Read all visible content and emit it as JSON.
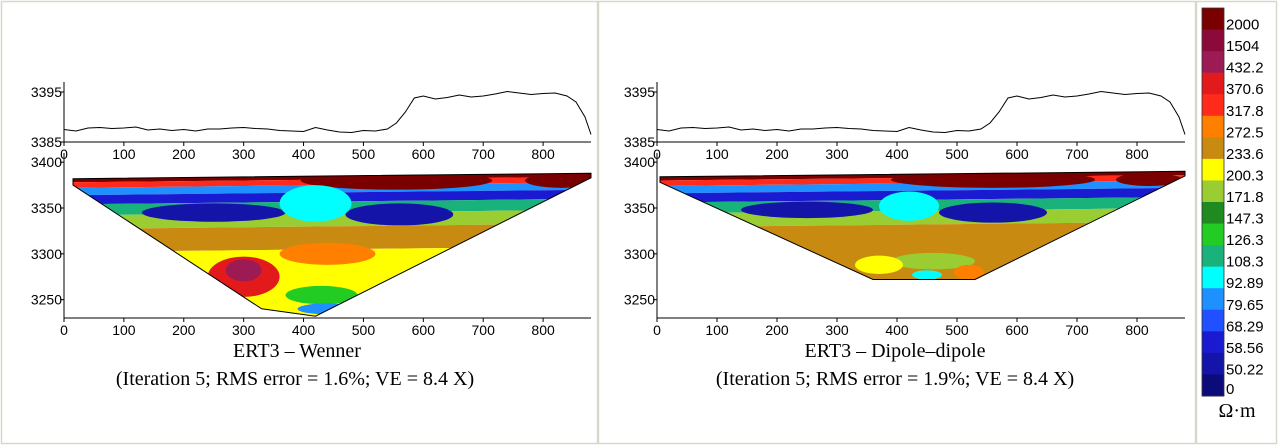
{
  "chart_data": [
    {
      "type": "line",
      "panel": "left-topography",
      "title": "",
      "xticks": [
        0,
        100,
        200,
        300,
        400,
        500,
        600,
        700,
        800
      ],
      "yticks": [
        3385,
        3395
      ],
      "xlim": [
        0,
        880
      ],
      "ylim": [
        3385,
        3397
      ],
      "grid": false,
      "x": [
        0,
        20,
        40,
        60,
        80,
        100,
        120,
        140,
        160,
        180,
        200,
        220,
        240,
        260,
        280,
        300,
        320,
        340,
        360,
        380,
        400,
        420,
        440,
        460,
        480,
        500,
        520,
        540,
        555,
        570,
        585,
        600,
        620,
        640,
        660,
        680,
        700,
        720,
        740,
        760,
        780,
        800,
        820,
        840,
        855,
        870,
        880
      ],
      "y": [
        3387.5,
        3387.2,
        3387.8,
        3387.9,
        3387.7,
        3387.8,
        3388.0,
        3387.4,
        3387.6,
        3387.3,
        3387.5,
        3387.2,
        3387.6,
        3387.6,
        3387.8,
        3387.9,
        3387.7,
        3387.6,
        3387.3,
        3387.2,
        3387.1,
        3387.9,
        3387.4,
        3387.0,
        3386.9,
        3387.3,
        3387.2,
        3387.6,
        3388.8,
        3391.0,
        3393.8,
        3394.2,
        3393.6,
        3393.9,
        3394.4,
        3394.0,
        3394.2,
        3394.6,
        3395.1,
        3394.8,
        3394.5,
        3394.7,
        3394.8,
        3394.2,
        3393.0,
        3390.0,
        3386.5
      ]
    },
    {
      "type": "heatmap",
      "panel": "left-section",
      "xticks": [
        0,
        100,
        200,
        300,
        400,
        500,
        600,
        700,
        800
      ],
      "yticks": [
        3250,
        3300,
        3350,
        3400
      ],
      "xlim": [
        0,
        880
      ],
      "ylim": [
        3230,
        3410
      ],
      "caption": "ERT3 – Wenner",
      "subcaption": "(Iteration 5; RMS error = 1.6%; VE = 8.4 X)",
      "outline": [
        [
          15,
          3382
        ],
        [
          880,
          3388
        ],
        [
          880,
          3383
        ],
        [
          420,
          3232
        ],
        [
          330,
          3240
        ],
        [
          15,
          3375
        ]
      ],
      "layers": [
        {
          "depth_top": 0,
          "depth_bottom": 4,
          "value": 2000
        },
        {
          "depth_top": 4,
          "depth_bottom": 10,
          "value": 317.8
        },
        {
          "depth_top": 10,
          "depth_bottom": 18,
          "value": 79.65
        },
        {
          "depth_top": 18,
          "depth_bottom": 28,
          "value": 58.56
        },
        {
          "depth_top": 28,
          "depth_bottom": 40,
          "value": 108.3
        },
        {
          "depth_top": 40,
          "depth_bottom": 55,
          "value": 171.8
        },
        {
          "depth_top": 55,
          "depth_bottom": 80,
          "value": 233.6
        },
        {
          "depth_top": 80,
          "depth_bottom": 200,
          "value": 200.3
        }
      ],
      "blobs": [
        {
          "cx": 555,
          "cy": 3380,
          "rx": 160,
          "ry": 10,
          "value": 2000
        },
        {
          "cx": 830,
          "cy": 3380,
          "rx": 60,
          "ry": 8,
          "value": 2000
        },
        {
          "cx": 560,
          "cy": 3343,
          "rx": 90,
          "ry": 12,
          "value": 50.22
        },
        {
          "cx": 250,
          "cy": 3345,
          "rx": 120,
          "ry": 10,
          "value": 50.22
        },
        {
          "cx": 420,
          "cy": 3355,
          "rx": 60,
          "ry": 20,
          "value": 92.89
        },
        {
          "cx": 440,
          "cy": 3300,
          "rx": 80,
          "ry": 12,
          "value": 272.5
        },
        {
          "cx": 300,
          "cy": 3275,
          "rx": 60,
          "ry": 22,
          "value": 370.6
        },
        {
          "cx": 300,
          "cy": 3282,
          "rx": 30,
          "ry": 12,
          "value": 432.2
        },
        {
          "cx": 430,
          "cy": 3255,
          "rx": 60,
          "ry": 10,
          "value": 126.3
        },
        {
          "cx": 440,
          "cy": 3240,
          "rx": 50,
          "ry": 6,
          "value": 79.65
        }
      ]
    },
    {
      "type": "line",
      "panel": "right-topography",
      "xticks": [
        0,
        100,
        200,
        300,
        400,
        500,
        600,
        700,
        800
      ],
      "yticks": [
        3385,
        3395
      ],
      "xlim": [
        0,
        880
      ],
      "ylim": [
        3385,
        3397
      ],
      "grid": false,
      "x": [
        0,
        20,
        40,
        60,
        80,
        100,
        120,
        140,
        160,
        180,
        200,
        220,
        240,
        260,
        280,
        300,
        320,
        340,
        360,
        380,
        400,
        420,
        440,
        460,
        480,
        500,
        520,
        540,
        555,
        570,
        585,
        600,
        620,
        640,
        660,
        680,
        700,
        720,
        740,
        760,
        780,
        800,
        820,
        840,
        855,
        870,
        880
      ],
      "y": [
        3387.5,
        3387.2,
        3387.8,
        3387.9,
        3387.7,
        3387.8,
        3388.0,
        3387.4,
        3387.6,
        3387.3,
        3387.5,
        3387.2,
        3387.6,
        3387.6,
        3387.8,
        3387.9,
        3387.7,
        3387.6,
        3387.3,
        3387.2,
        3387.1,
        3387.9,
        3387.4,
        3387.0,
        3386.9,
        3387.3,
        3387.2,
        3387.6,
        3388.8,
        3391.0,
        3393.8,
        3394.2,
        3393.6,
        3393.9,
        3394.4,
        3394.0,
        3394.2,
        3394.6,
        3395.1,
        3394.8,
        3394.5,
        3394.7,
        3394.8,
        3394.2,
        3393.0,
        3390.0,
        3386.5
      ]
    },
    {
      "type": "heatmap",
      "panel": "right-section",
      "xticks": [
        0,
        100,
        200,
        300,
        400,
        500,
        600,
        700,
        800
      ],
      "yticks": [
        3250,
        3300,
        3350,
        3400
      ],
      "xlim": [
        0,
        880
      ],
      "ylim": [
        3230,
        3410
      ],
      "caption": "ERT3 – Dipole–dipole",
      "subcaption": "(Iteration 5; RMS error = 1.9%; VE = 8.4 X)",
      "outline": [
        [
          5,
          3384
        ],
        [
          880,
          3390
        ],
        [
          880,
          3385
        ],
        [
          530,
          3272
        ],
        [
          360,
          3272
        ],
        [
          5,
          3378
        ]
      ],
      "layers": [
        {
          "depth_top": 0,
          "depth_bottom": 4,
          "value": 2000
        },
        {
          "depth_top": 4,
          "depth_bottom": 10,
          "value": 317.8
        },
        {
          "depth_top": 10,
          "depth_bottom": 18,
          "value": 79.65
        },
        {
          "depth_top": 18,
          "depth_bottom": 28,
          "value": 58.56
        },
        {
          "depth_top": 28,
          "depth_bottom": 40,
          "value": 108.3
        },
        {
          "depth_top": 40,
          "depth_bottom": 55,
          "value": 171.8
        },
        {
          "depth_top": 55,
          "depth_bottom": 200,
          "value": 233.6
        }
      ],
      "blobs": [
        {
          "cx": 560,
          "cy": 3381,
          "rx": 170,
          "ry": 9,
          "value": 2000
        },
        {
          "cx": 820,
          "cy": 3381,
          "rx": 55,
          "ry": 7,
          "value": 2000
        },
        {
          "cx": 560,
          "cy": 3345,
          "rx": 90,
          "ry": 11,
          "value": 50.22
        },
        {
          "cx": 250,
          "cy": 3348,
          "rx": 110,
          "ry": 9,
          "value": 50.22
        },
        {
          "cx": 420,
          "cy": 3352,
          "rx": 50,
          "ry": 16,
          "value": 92.89
        },
        {
          "cx": 460,
          "cy": 3292,
          "rx": 70,
          "ry": 9,
          "value": 171.8
        },
        {
          "cx": 370,
          "cy": 3288,
          "rx": 40,
          "ry": 10,
          "value": 200.3
        },
        {
          "cx": 450,
          "cy": 3277,
          "rx": 25,
          "ry": 5,
          "value": 92.89
        },
        {
          "cx": 520,
          "cy": 3280,
          "rx": 25,
          "ry": 8,
          "value": 272.5
        }
      ]
    }
  ],
  "legend": {
    "unit": "Ω·m",
    "labels": [
      "2000",
      "1504",
      "432.2",
      "370.6",
      "317.8",
      "272.5",
      "233.6",
      "200.3",
      "171.8",
      "147.3",
      "126.3",
      "108.3",
      "92.89",
      "79.65",
      "68.29",
      "58.56",
      "50.22",
      "0"
    ],
    "colors": [
      "#7a0000",
      "#8b0a3a",
      "#9c1b55",
      "#e31a1c",
      "#ff2a1a",
      "#ff7f00",
      "#c98a12",
      "#ffff00",
      "#9acd32",
      "#1f8a1f",
      "#22cc22",
      "#19b27a",
      "#00ffff",
      "#1e90ff",
      "#2050ff",
      "#1a1ad0",
      "#1414a8",
      "#0b0b7a"
    ]
  }
}
